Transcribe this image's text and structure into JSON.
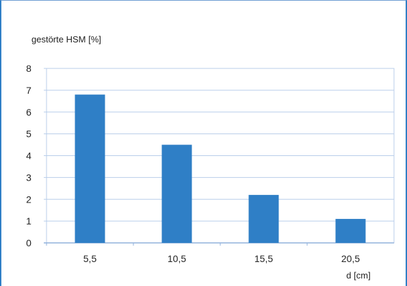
{
  "chart_data": {
    "type": "bar",
    "categories": [
      "5,5",
      "10,5",
      "15,5",
      "20,5"
    ],
    "values": [
      6.8,
      4.5,
      2.2,
      1.1
    ],
    "ylabel": "gestörte HSM [%]",
    "xlabel": "d [cm]",
    "ylim": [
      0,
      8
    ],
    "yticks": [
      "0",
      "1",
      "2",
      "3",
      "4",
      "5",
      "6",
      "7",
      "8"
    ],
    "grid": true,
    "bar_color": "#2f7fc6",
    "grid_color": "#b8cdea"
  }
}
